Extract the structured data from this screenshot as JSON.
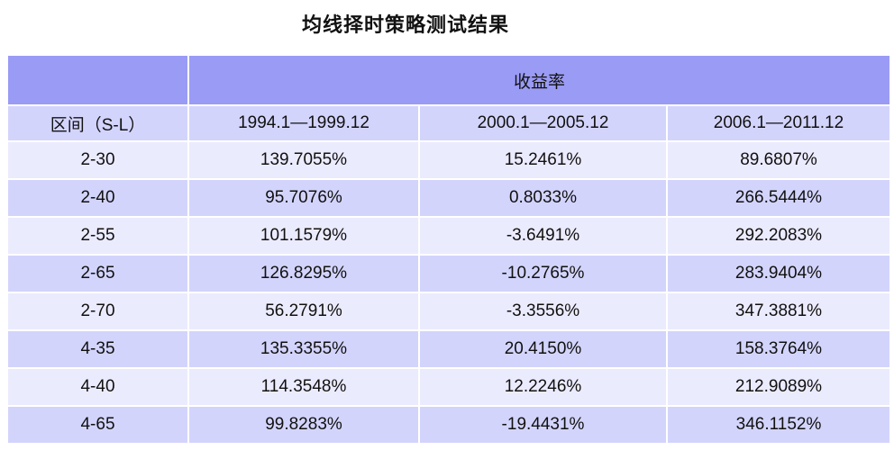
{
  "chart_data": {
    "type": "table",
    "title": "均线择时策略测试结果",
    "metric": "收益率",
    "row_header": "区间（S-L）",
    "columns": [
      "1994.1—1999.12",
      "2000.1—2005.12",
      "2006.1—2011.12"
    ],
    "rows": [
      {
        "label": "2-30",
        "values": [
          "139.7055%",
          "15.2461%",
          "89.6807%"
        ]
      },
      {
        "label": "2-40",
        "values": [
          "95.7076%",
          "0.8033%",
          "266.5444%"
        ]
      },
      {
        "label": "2-55",
        "values": [
          "101.1579%",
          "-3.6491%",
          "292.2083%"
        ]
      },
      {
        "label": "2-65",
        "values": [
          "126.8295%",
          "-10.2765%",
          "283.9404%"
        ]
      },
      {
        "label": "2-70",
        "values": [
          "56.2791%",
          "-3.3556%",
          "347.3881%"
        ]
      },
      {
        "label": "4-35",
        "values": [
          "135.3355%",
          "20.4150%",
          "158.3764%"
        ]
      },
      {
        "label": "4-40",
        "values": [
          "114.3548%",
          "12.2246%",
          "212.9089%"
        ]
      },
      {
        "label": "4-65",
        "values": [
          "99.8283%",
          "-19.4431%",
          "346.1152%"
        ]
      }
    ]
  },
  "colors": {
    "header": "#9a9bf5",
    "row_dark": "#d3d4fc",
    "row_light": "#ebebfe"
  }
}
